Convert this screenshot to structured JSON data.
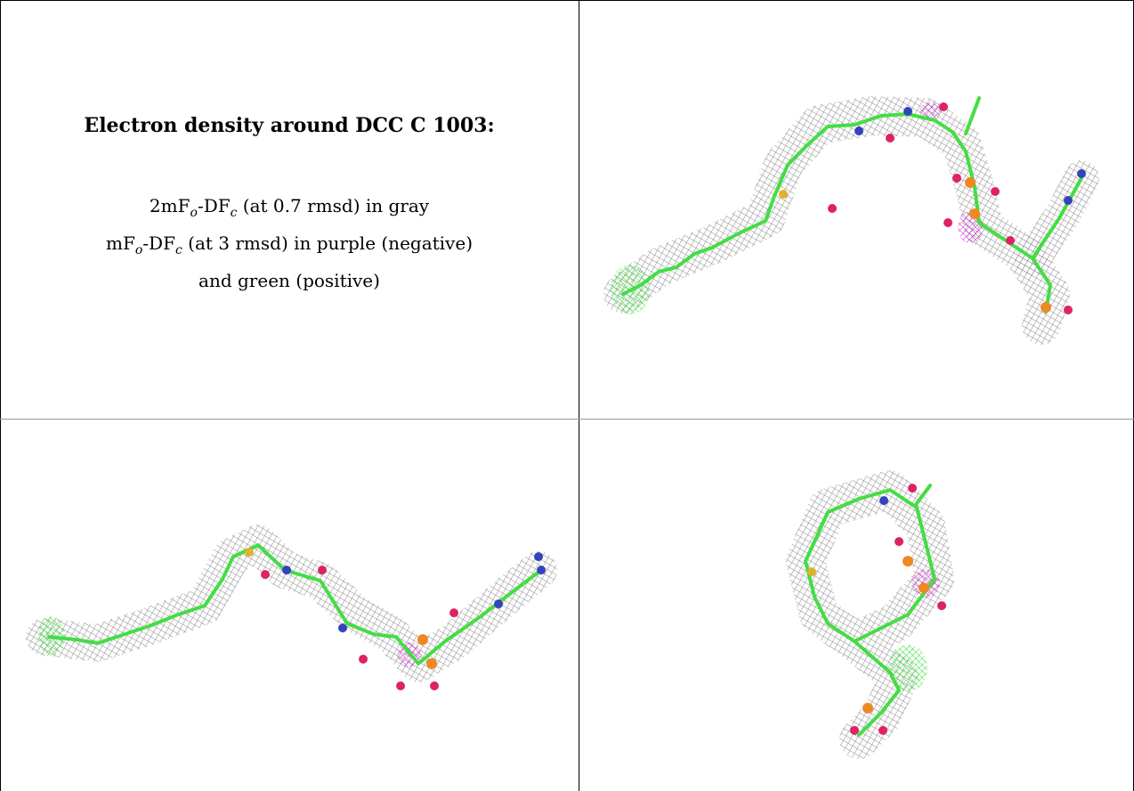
{
  "title": "Electron density around DCC C 1003:",
  "legend_lines": [
    [
      {
        "text": "2mF"
      },
      {
        "text": "o",
        "sub": true
      },
      {
        "text": "-DF"
      },
      {
        "text": "c",
        "sub": true
      },
      {
        "text": " (at 0.7 rmsd) in gray"
      }
    ],
    [
      {
        "text": "mF"
      },
      {
        "text": "o",
        "sub": true
      },
      {
        "text": "-DF"
      },
      {
        "text": "c",
        "sub": true
      },
      {
        "text": " (at 3 rmsd) in purple (negative)"
      }
    ],
    [
      {
        "text": "and green (positive)"
      }
    ]
  ]
}
